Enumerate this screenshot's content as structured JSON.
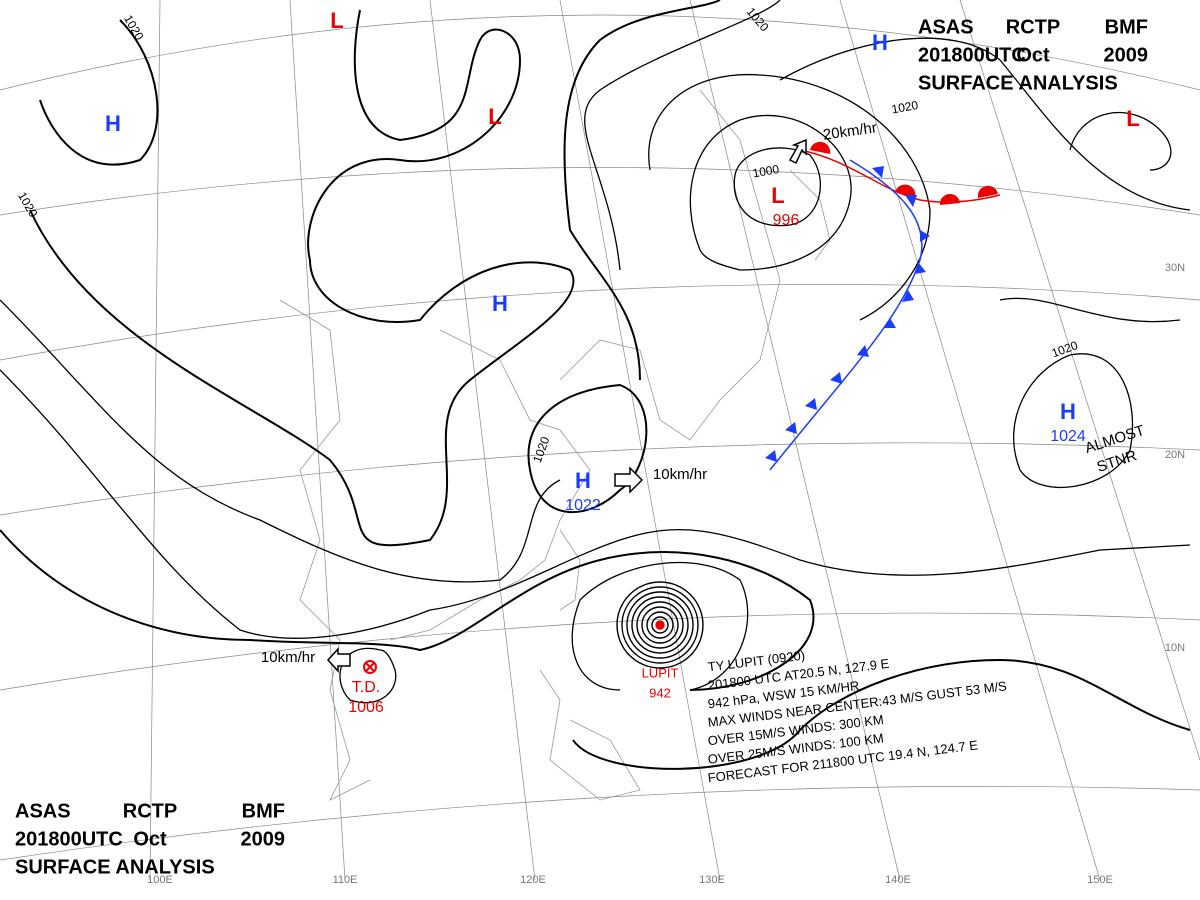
{
  "title_block": {
    "lines": [
      [
        "ASAS",
        "RCTP",
        "BMF"
      ],
      [
        "201800UTC",
        "Oct",
        "2009"
      ],
      [
        "SURFACE ANALYSIS"
      ]
    ]
  },
  "centers": [
    {
      "symbol": "H"
    },
    {
      "symbol": "H"
    },
    {
      "symbol": "H",
      "value": "1022"
    },
    {
      "symbol": "H",
      "value": "1024"
    },
    {
      "symbol": "H"
    },
    {
      "symbol": "L"
    },
    {
      "symbol": "L"
    },
    {
      "symbol": "L"
    },
    {
      "symbol": "L",
      "value": "996"
    },
    {
      "symbol": "T.D.",
      "value": "1006"
    },
    {
      "symbol": "LUPIT",
      "value": "942"
    }
  ],
  "isobar_labels": [
    "1020",
    "1020",
    "1020",
    "1020",
    "1020",
    "1020",
    "1000"
  ],
  "motions": [
    "20km/hr",
    "10km/hr",
    "10km/hr"
  ],
  "note": [
    "ALMOST",
    "STNR"
  ],
  "typhoon_info": [
    "TY LUPIT (0920)",
    "201800 UTC AT20.5 N, 127.9 E",
    "942 hPa, WSW 15 KM/HR",
    "MAX WINDS NEAR CENTER:43 M/S GUST 53 M/S",
    "OVER 15M/S WINDS: 300 KM",
    "OVER 25M/S WINDS: 100 KM",
    "FORECAST FOR 211800 UTC 19.4 N, 124.7 E"
  ],
  "longitudes": [
    "100E",
    "110E",
    "120E",
    "130E",
    "140E",
    "150E"
  ],
  "latitudes": [
    "30N",
    "20N",
    "10N"
  ]
}
